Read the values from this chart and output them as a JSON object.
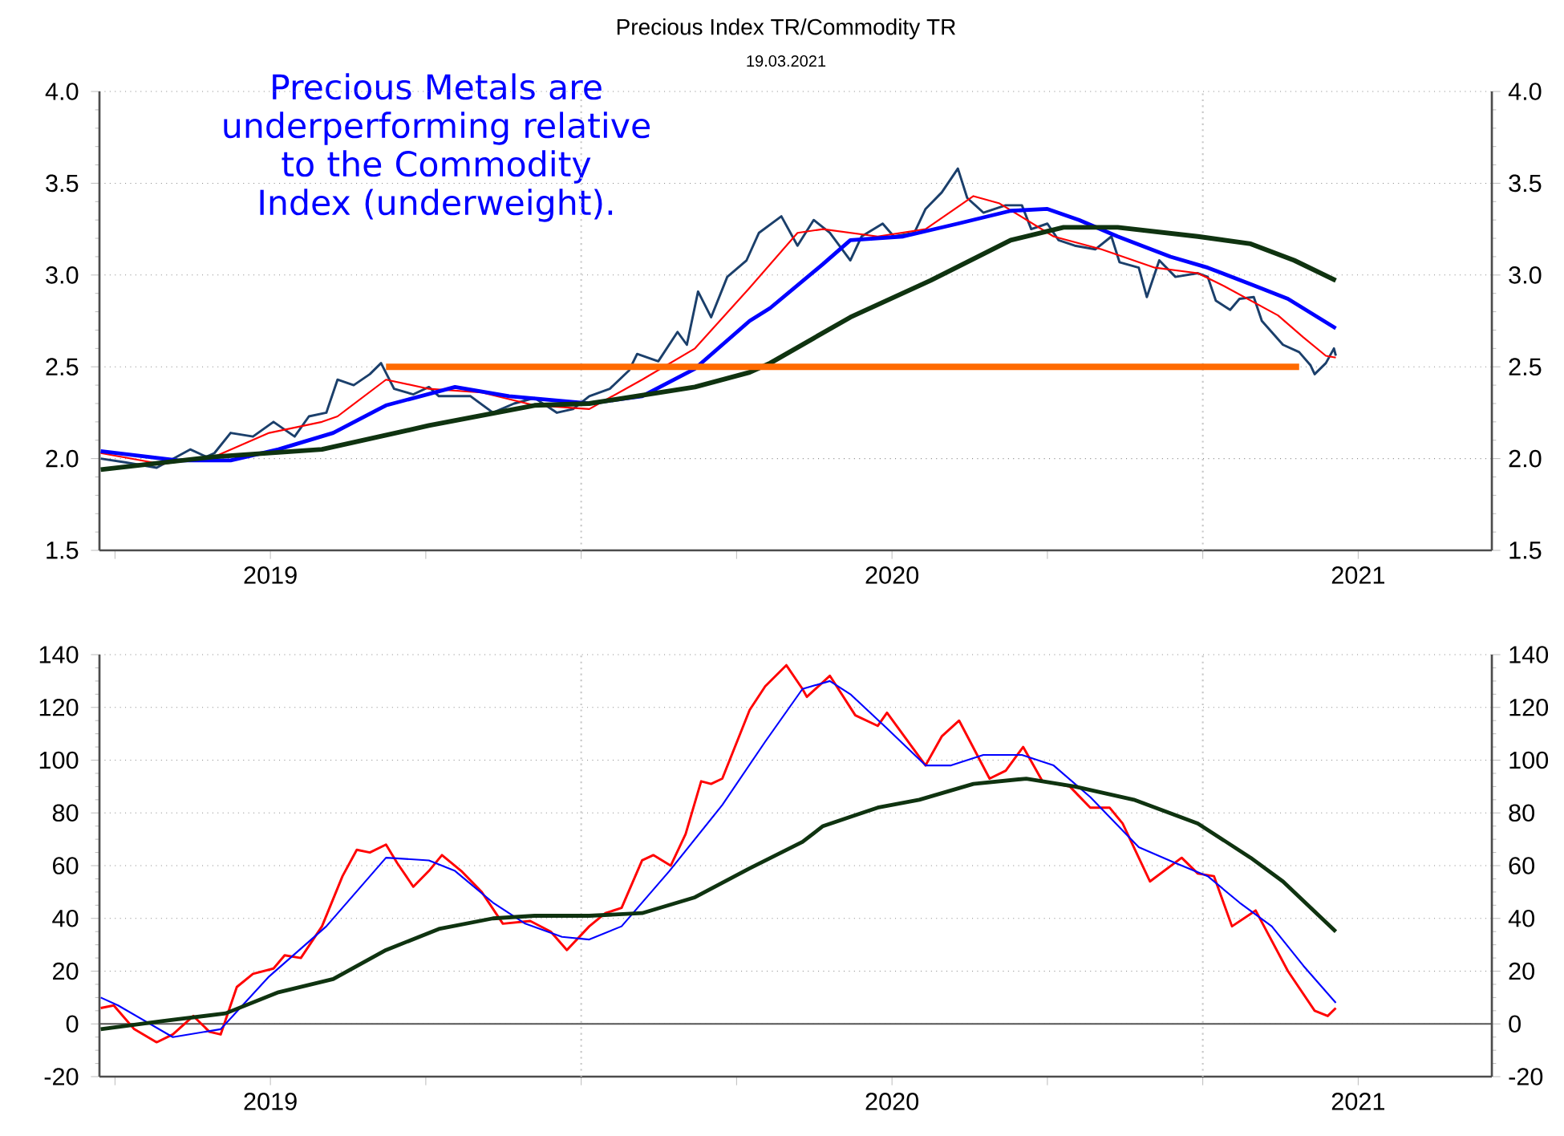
{
  "chart_data": [
    {
      "type": "line",
      "title": "Precious Index TR/Commodity TR",
      "subtitle": "19.03.2021",
      "annotations": [
        "Precious Metals are underperforming relative to the Commodity Index (underweight)."
      ],
      "xlim": [
        2019.225,
        2021.465
      ],
      "xticks": [
        {
          "value": 2019.25,
          "label": null
        },
        {
          "value": 2019.5,
          "label": "2019"
        },
        {
          "value": 2019.75,
          "label": null
        },
        {
          "value": 2020,
          "label": null
        },
        {
          "value": 2020.25,
          "label": null
        },
        {
          "value": 2020.5,
          "label": "2020"
        },
        {
          "value": 2020.75,
          "label": null
        },
        {
          "value": 2021,
          "label": null
        },
        {
          "value": 2021.25,
          "label": "2021"
        }
      ],
      "ylim": [
        1.5,
        4.0
      ],
      "yticks": [
        {
          "value": 1.5,
          "label": "1.5"
        },
        {
          "value": 2,
          "label": "2.0"
        },
        {
          "value": 2.5,
          "label": "2.5"
        },
        {
          "value": 3,
          "label": "3.0"
        },
        {
          "value": 3.5,
          "label": "3.5"
        },
        {
          "value": 4,
          "label": "4.0"
        }
      ],
      "y2lim": [
        1.5,
        4.0
      ],
      "y2ticks": [
        {
          "value": 1.5,
          "label": "1.5"
        },
        {
          "value": 2,
          "label": "2.0"
        },
        {
          "value": 2.5,
          "label": "2.5"
        },
        {
          "value": 3,
          "label": "3.0"
        },
        {
          "value": 3.5,
          "label": "3.5"
        },
        {
          "value": 4,
          "label": "4.0"
        }
      ],
      "grid": "y",
      "line_style": "solid",
      "ref_lines": [
        {
          "axis": "x",
          "value": 2020,
          "color": "#c8c8c8",
          "line_style": "dotted"
        },
        {
          "axis": "x",
          "value": 2021,
          "color": "#c8c8c8",
          "line_style": "dotted"
        }
      ],
      "series": [
        {
          "color": "#1b3f6b",
          "x": [
            2019.227,
            2019.266,
            2019.317,
            2019.371,
            2019.397,
            2019.41,
            2019.436,
            2019.472,
            2019.505,
            2019.539,
            2019.562,
            2019.59,
            2019.608,
            2019.634,
            2019.66,
            2019.678,
            2019.699,
            2019.73,
            2019.755,
            2019.771,
            2019.822,
            2019.858,
            2019.892,
            2019.925,
            2019.961,
            2019.987,
            2020.013,
            2020.046,
            2020.077,
            2020.09,
            2020.124,
            2020.155,
            2020.17,
            2020.188,
            2020.209,
            2020.235,
            2020.266,
            2020.286,
            2020.322,
            2020.348,
            2020.374,
            2020.4,
            2020.433,
            2020.451,
            2020.485,
            2020.503,
            2020.536,
            2020.554,
            2020.58,
            2020.606,
            2020.621,
            2020.647,
            2020.683,
            2020.709,
            2020.724,
            2020.75,
            2020.768,
            2020.794,
            2020.827,
            2020.853,
            2020.866,
            2020.897,
            2020.91,
            2020.93,
            2020.956,
            2020.992,
            2021.008,
            2021.021,
            2021.044,
            2021.059,
            2021.082,
            2021.095,
            2021.129,
            2021.155,
            2021.173,
            2021.18,
            2021.198,
            2021.211,
            2021.214
          ],
          "values": [
            2.0,
            1.98,
            1.95,
            2.05,
            2.01,
            2.03,
            2.14,
            2.12,
            2.2,
            2.12,
            2.23,
            2.25,
            2.43,
            2.4,
            2.46,
            2.52,
            2.38,
            2.35,
            2.39,
            2.34,
            2.34,
            2.25,
            2.3,
            2.33,
            2.25,
            2.27,
            2.34,
            2.38,
            2.48,
            2.57,
            2.53,
            2.69,
            2.62,
            2.91,
            2.77,
            2.99,
            3.08,
            3.23,
            3.32,
            3.16,
            3.3,
            3.23,
            3.08,
            3.21,
            3.28,
            3.21,
            3.23,
            3.36,
            3.45,
            3.58,
            3.42,
            3.34,
            3.38,
            3.38,
            3.25,
            3.28,
            3.19,
            3.16,
            3.14,
            3.21,
            3.07,
            3.04,
            2.88,
            3.08,
            2.99,
            3.01,
            2.99,
            2.86,
            2.81,
            2.87,
            2.88,
            2.75,
            2.62,
            2.58,
            2.51,
            2.46,
            2.52,
            2.6,
            2.56
          ]
        },
        {
          "color": "#ff0000",
          "x": [
            2019.227,
            2019.325,
            2019.41,
            2019.498,
            2019.583,
            2019.608,
            2019.686,
            2019.755,
            2019.84,
            2019.925,
            2020.013,
            2020.098,
            2020.183,
            2020.271,
            2020.348,
            2020.389,
            2020.477,
            2020.554,
            2020.631,
            2020.673,
            2020.76,
            2020.837,
            2020.923,
            2020.992,
            2021.034,
            2021.121,
            2021.162,
            2021.198,
            2021.214
          ],
          "values": [
            2.03,
            1.97,
            2.01,
            2.14,
            2.2,
            2.23,
            2.43,
            2.38,
            2.36,
            2.29,
            2.27,
            2.43,
            2.6,
            2.93,
            3.23,
            3.25,
            3.21,
            3.25,
            3.43,
            3.39,
            3.21,
            3.14,
            3.04,
            3.01,
            2.94,
            2.78,
            2.66,
            2.56,
            2.55
          ]
        },
        {
          "color": "#0000ff",
          "x": [
            2019.227,
            2019.351,
            2019.436,
            2019.513,
            2019.601,
            2019.686,
            2019.797,
            2019.884,
            2020.013,
            2020.098,
            2020.183,
            2020.271,
            2020.304,
            2020.389,
            2020.433,
            2020.518,
            2020.606,
            2020.691,
            2020.75,
            2020.801,
            2020.863,
            2020.948,
            2021.008,
            2021.077,
            2021.137,
            2021.214
          ],
          "values": [
            2.04,
            1.99,
            1.99,
            2.05,
            2.14,
            2.29,
            2.39,
            2.34,
            2.3,
            2.34,
            2.49,
            2.75,
            2.82,
            3.06,
            3.19,
            3.21,
            3.28,
            3.35,
            3.36,
            3.3,
            3.21,
            3.1,
            3.04,
            2.95,
            2.87,
            2.71
          ]
        },
        {
          "color": "#0f3310",
          "x": [
            2019.227,
            2019.41,
            2019.583,
            2019.755,
            2019.925,
            2020.013,
            2020.183,
            2020.271,
            2020.304,
            2020.433,
            2020.562,
            2020.691,
            2020.776,
            2020.863,
            2020.992,
            2021.077,
            2021.147,
            2021.214
          ],
          "values": [
            1.94,
            2.01,
            2.05,
            2.18,
            2.29,
            2.3,
            2.39,
            2.47,
            2.52,
            2.77,
            2.97,
            3.19,
            3.26,
            3.26,
            3.21,
            3.17,
            3.08,
            2.97
          ]
        },
        {
          "color": "#ff6a00",
          "x": [
            2019.686,
            2021.155
          ],
          "values": [
            2.5,
            2.5
          ]
        }
      ]
    },
    {
      "type": "line",
      "xlim": [
        2019.225,
        2021.465
      ],
      "xticks": [
        {
          "value": 2019.25,
          "label": null
        },
        {
          "value": 2019.5,
          "label": "2019"
        },
        {
          "value": 2019.75,
          "label": null
        },
        {
          "value": 2020,
          "label": null
        },
        {
          "value": 2020.25,
          "label": null
        },
        {
          "value": 2020.5,
          "label": "2020"
        },
        {
          "value": 2020.75,
          "label": null
        },
        {
          "value": 2021,
          "label": null
        },
        {
          "value": 2021.25,
          "label": "2021"
        }
      ],
      "ylim": [
        -20,
        140
      ],
      "yticks": [
        -20,
        0,
        20,
        40,
        60,
        80,
        100,
        120,
        140
      ],
      "y2lim": [
        -20,
        140
      ],
      "y2ticks": [
        -20,
        0,
        20,
        40,
        60,
        80,
        100,
        120,
        140
      ],
      "grid": "y",
      "line_style": "solid",
      "ref_lines": [
        {
          "axis": "x",
          "value": 2020,
          "color": "#c8c8c8",
          "line_style": "dotted"
        },
        {
          "axis": "x",
          "value": 2021,
          "color": "#c8c8c8",
          "line_style": "dotted"
        },
        {
          "axis": "y",
          "value": 0,
          "color": "#555555",
          "line_style": "solid"
        }
      ],
      "series": [
        {
          "color": "#ff0000",
          "x": [
            2019.227,
            2019.248,
            2019.281,
            2019.317,
            2019.343,
            2019.376,
            2019.402,
            2019.42,
            2019.446,
            2019.472,
            2019.505,
            2019.523,
            2019.549,
            2019.583,
            2019.616,
            2019.639,
            2019.66,
            2019.686,
            2019.704,
            2019.73,
            2019.755,
            2019.776,
            2019.807,
            2019.84,
            2019.874,
            2019.918,
            2019.951,
            2019.977,
            2020.013,
            2020.039,
            2020.065,
            2020.098,
            2020.116,
            2020.144,
            2020.168,
            2020.193,
            2020.209,
            2020.227,
            2020.271,
            2020.296,
            2020.33,
            2020.356,
            2020.363,
            2020.4,
            2020.441,
            2020.477,
            2020.492,
            2020.554,
            2020.58,
            2020.608,
            2020.657,
            2020.683,
            2020.711,
            2020.742,
            2020.786,
            2020.819,
            2020.85,
            2020.871,
            2020.915,
            2020.966,
            2020.992,
            2021.018,
            2021.047,
            2021.085,
            2021.137,
            2021.18,
            2021.201,
            2021.214
          ],
          "values": [
            6,
            7,
            -2,
            -7,
            -4,
            3,
            -3,
            -4,
            14,
            19,
            21,
            26,
            25,
            37,
            56,
            66,
            65,
            68,
            61,
            52,
            58,
            64,
            58,
            50,
            38,
            39,
            35,
            28,
            37,
            42,
            44,
            62,
            64,
            60,
            72,
            92,
            91,
            93,
            119,
            128,
            136,
            127,
            124,
            132,
            117,
            113,
            118,
            98,
            109,
            115,
            93,
            96,
            105,
            92,
            90,
            82,
            82,
            76,
            54,
            63,
            57,
            56,
            37,
            43,
            20,
            5,
            3,
            6
          ]
        },
        {
          "color": "#0000ff",
          "x": [
            2019.227,
            2019.255,
            2019.343,
            2019.42,
            2019.498,
            2019.59,
            2019.686,
            2019.755,
            2019.797,
            2019.858,
            2019.91,
            2019.969,
            2020.013,
            2020.065,
            2020.142,
            2020.227,
            2020.296,
            2020.356,
            2020.4,
            2020.433,
            2020.492,
            2020.554,
            2020.595,
            2020.647,
            2020.709,
            2020.76,
            2020.819,
            2020.897,
            2020.956,
            2021.008,
            2021.059,
            2021.111,
            2021.162,
            2021.214
          ],
          "values": [
            10,
            7,
            -5,
            -2,
            18,
            37,
            63,
            62,
            58,
            46,
            38,
            33,
            32,
            37,
            58,
            83,
            107,
            127,
            130,
            125,
            112,
            98,
            98,
            102,
            102,
            98,
            86,
            67,
            61,
            56,
            46,
            37,
            22,
            8
          ]
        },
        {
          "color": "#0f3310",
          "x": [
            2019.227,
            2019.325,
            2019.428,
            2019.513,
            2019.601,
            2019.686,
            2019.771,
            2019.858,
            2019.925,
            2020.013,
            2020.098,
            2020.183,
            2020.271,
            2020.356,
            2020.389,
            2020.477,
            2020.544,
            2020.631,
            2020.716,
            2020.794,
            2020.889,
            2020.992,
            2021.077,
            2021.129,
            2021.214
          ],
          "values": [
            -2,
            1,
            4,
            12,
            17,
            28,
            36,
            40,
            41,
            41,
            42,
            48,
            59,
            69,
            75,
            82,
            85,
            91,
            93,
            90,
            85,
            76,
            63,
            54,
            35
          ]
        }
      ]
    }
  ]
}
